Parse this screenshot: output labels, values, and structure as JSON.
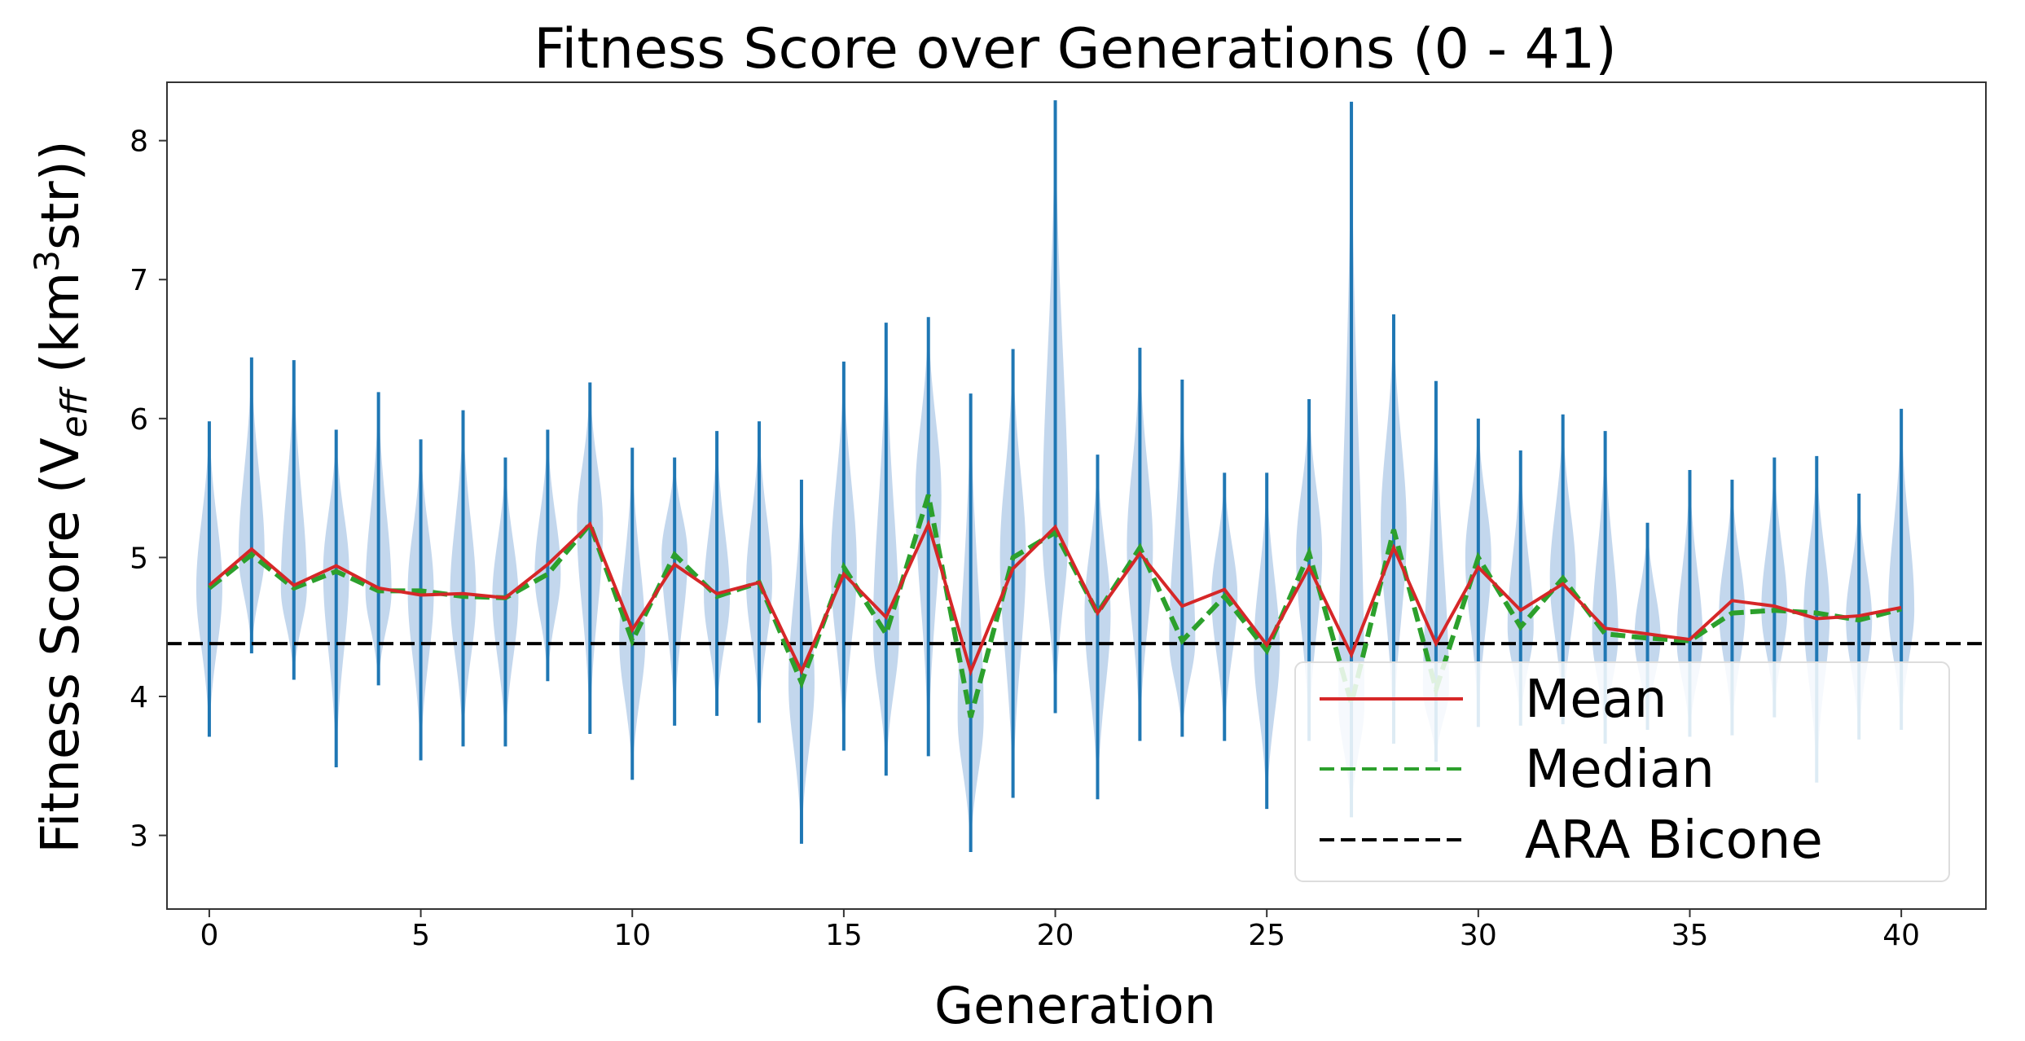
{
  "chart_data": {
    "type": "violin",
    "title": "Fitness Score over Generations (0 - 41)",
    "xlabel": "Generation",
    "ylabel": {
      "main": "Fitness Score (V",
      "sub": "eff",
      "mid": " (km",
      "sup": "3",
      "end": "str))"
    },
    "xlim": [
      -1,
      42
    ],
    "ylim": [
      2.47,
      8.42
    ],
    "xticks": [
      0,
      5,
      10,
      15,
      20,
      25,
      30,
      35,
      40
    ],
    "yticks": [
      3,
      4,
      5,
      6,
      7,
      8
    ],
    "grid": false,
    "legend_placement": "lower-right",
    "colors": {
      "violin": "#1f77b4",
      "violin_fill": "#a9c6e6",
      "mean": "#d62728",
      "median": "#2ca02c",
      "reference": "#000000"
    },
    "x": [
      0,
      1,
      2,
      3,
      4,
      5,
      6,
      7,
      8,
      9,
      10,
      11,
      12,
      13,
      14,
      15,
      16,
      17,
      18,
      19,
      20,
      21,
      22,
      23,
      24,
      25,
      26,
      27,
      28,
      29,
      30,
      31,
      32,
      33,
      34,
      35,
      36,
      37,
      38,
      39,
      40
    ],
    "violin_max": [
      5.98,
      6.44,
      6.42,
      5.92,
      6.19,
      5.85,
      6.06,
      5.72,
      5.92,
      6.26,
      5.79,
      5.72,
      5.91,
      5.98,
      5.56,
      6.41,
      6.69,
      6.73,
      6.18,
      6.5,
      8.29,
      5.74,
      6.51,
      6.28,
      5.61,
      5.61,
      6.14,
      8.28,
      6.75,
      6.27,
      6.0,
      5.77,
      6.03,
      5.91,
      5.25,
      5.63,
      5.56,
      5.72,
      5.73,
      5.46,
      6.07
    ],
    "violin_min": [
      3.71,
      4.31,
      4.12,
      3.49,
      4.08,
      3.54,
      3.64,
      3.64,
      4.11,
      3.73,
      3.4,
      3.79,
      3.86,
      3.81,
      2.94,
      3.61,
      3.43,
      3.57,
      2.88,
      3.27,
      3.88,
      3.26,
      3.68,
      3.71,
      3.68,
      3.19,
      3.68,
      3.13,
      3.66,
      3.53,
      3.78,
      3.79,
      3.8,
      3.66,
      3.76,
      3.71,
      3.72,
      3.85,
      3.38,
      3.69,
      3.76
    ],
    "series": [
      {
        "name": "Mean",
        "style": "solid",
        "values": [
          4.8,
          5.06,
          4.8,
          4.94,
          4.78,
          4.73,
          4.74,
          4.71,
          4.95,
          5.24,
          4.48,
          4.95,
          4.74,
          4.82,
          4.18,
          4.88,
          4.57,
          5.24,
          4.18,
          4.92,
          5.22,
          4.6,
          5.03,
          4.65,
          4.77,
          4.37,
          4.93,
          4.3,
          5.07,
          4.38,
          4.93,
          4.62,
          4.81,
          4.49,
          4.45,
          4.41,
          4.69,
          4.65,
          4.56,
          4.58,
          4.64
        ]
      },
      {
        "name": "Median",
        "style": "dashed",
        "values": [
          4.78,
          5.02,
          4.78,
          4.9,
          4.76,
          4.76,
          4.72,
          4.71,
          4.88,
          5.24,
          4.4,
          5.02,
          4.72,
          4.82,
          4.1,
          4.93,
          4.45,
          5.45,
          3.85,
          5.0,
          5.18,
          4.6,
          5.07,
          4.4,
          4.72,
          4.33,
          5.03,
          3.95,
          5.2,
          4.05,
          5.0,
          4.5,
          4.85,
          4.45,
          4.42,
          4.4,
          4.6,
          4.62,
          4.6,
          4.55,
          4.63
        ]
      },
      {
        "name": "ARA Bicone",
        "style": "dashed",
        "constant": 4.38
      }
    ]
  }
}
